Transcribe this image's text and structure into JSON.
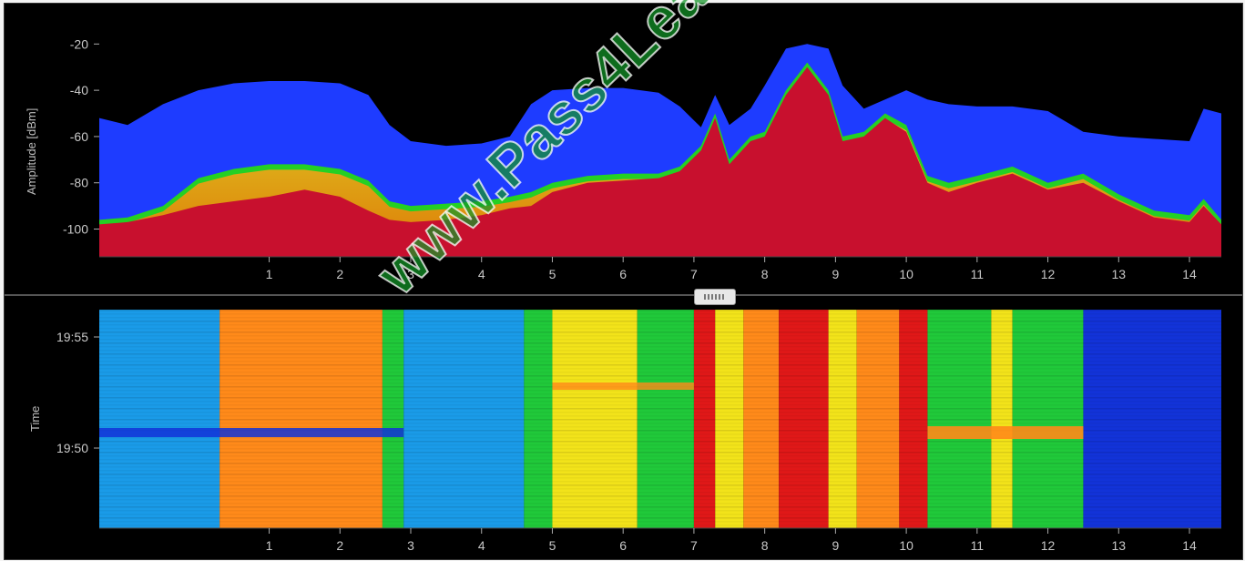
{
  "chart_data": [
    {
      "type": "area",
      "ylabel": "Amplitude [dBm]",
      "xlabel": "",
      "ylim": [
        -112,
        -12
      ],
      "xlim": [
        -1.4,
        14.45
      ],
      "x_ticks": [
        "1",
        "2",
        "3",
        "4",
        "5",
        "6",
        "7",
        "8",
        "9",
        "10",
        "11",
        "12",
        "13",
        "14"
      ],
      "y_ticks": [
        "-20",
        "-40",
        "-60",
        "-80",
        "-100"
      ],
      "grid": false,
      "series": [
        {
          "color": "#1e3cff",
          "x": [
            -1.4,
            -1.0,
            -0.5,
            0.0,
            0.5,
            1.0,
            1.5,
            2.0,
            2.4,
            2.7,
            3.0,
            3.5,
            4.0,
            4.4,
            4.7,
            5.0,
            5.5,
            6.0,
            6.5,
            6.8,
            7.1,
            7.3,
            7.5,
            7.8,
            8.0,
            8.3,
            8.6,
            8.9,
            9.1,
            9.4,
            9.7,
            10.0,
            10.3,
            10.6,
            11.0,
            11.5,
            12.0,
            12.5,
            13.0,
            13.5,
            14.0,
            14.2,
            14.45
          ],
          "values": [
            -52,
            -55,
            -46,
            -40,
            -37,
            -36,
            -36,
            -37,
            -42,
            -55,
            -62,
            -64,
            -63,
            -60,
            -46,
            -40,
            -39,
            -39,
            -41,
            -47,
            -56,
            -42,
            -55,
            -48,
            -38,
            -22,
            -20,
            -22,
            -38,
            -48,
            -44,
            -40,
            -44,
            -46,
            -47,
            -47,
            -49,
            -58,
            -60,
            -61,
            -62,
            -48,
            -50
          ]
        },
        {
          "color": "#24d024",
          "x": [
            -1.4,
            -1.0,
            -0.5,
            0.0,
            0.5,
            1.0,
            1.5,
            2.0,
            2.4,
            2.7,
            3.0,
            3.5,
            4.0,
            4.4,
            4.7,
            5.0,
            5.5,
            6.0,
            6.5,
            6.8,
            7.1,
            7.3,
            7.5,
            7.8,
            8.0,
            8.3,
            8.6,
            8.9,
            9.1,
            9.4,
            9.7,
            10.0,
            10.3,
            10.6,
            11.0,
            11.5,
            12.0,
            12.5,
            13.0,
            13.5,
            14.0,
            14.2,
            14.45
          ],
          "values": [
            -96,
            -95,
            -90,
            -78,
            -74,
            -72,
            -72,
            -74,
            -79,
            -88,
            -90,
            -89,
            -88,
            -86,
            -84,
            -80,
            -77,
            -76,
            -76,
            -73,
            -64,
            -50,
            -70,
            -60,
            -58,
            -40,
            -28,
            -40,
            -60,
            -58,
            -50,
            -55,
            -77,
            -80,
            -77,
            -73,
            -80,
            -76,
            -85,
            -92,
            -94,
            -87,
            -96
          ]
        },
        {
          "color": "#c8102e",
          "x": [
            -1.4,
            -1.0,
            -0.5,
            0.0,
            0.5,
            1.0,
            1.5,
            2.0,
            2.4,
            2.7,
            3.0,
            3.5,
            4.0,
            4.4,
            4.7,
            5.0,
            5.5,
            6.0,
            6.5,
            6.8,
            7.1,
            7.3,
            7.5,
            7.8,
            8.0,
            8.3,
            8.6,
            8.9,
            9.1,
            9.4,
            9.7,
            10.0,
            10.3,
            10.6,
            11.0,
            11.5,
            12.0,
            12.5,
            13.0,
            13.5,
            14.0,
            14.2,
            14.45
          ],
          "values": [
            -98,
            -97,
            -94,
            -90,
            -88,
            -86,
            -83,
            -86,
            -92,
            -96,
            -97,
            -96,
            -94,
            -91,
            -90,
            -84,
            -80,
            -79,
            -78,
            -75,
            -66,
            -52,
            -72,
            -62,
            -60,
            -42,
            -30,
            -42,
            -62,
            -60,
            -52,
            -58,
            -80,
            -84,
            -80,
            -76,
            -83,
            -80,
            -88,
            -95,
            -97,
            -90,
            -98
          ]
        }
      ]
    },
    {
      "type": "heatmap",
      "ylabel": "Time",
      "xlabel": "",
      "x_ticks": [
        "1",
        "2",
        "3",
        "4",
        "5",
        "6",
        "7",
        "8",
        "9",
        "10",
        "11",
        "12",
        "13",
        "14"
      ],
      "y_ticks": [
        "19:55",
        "19:50"
      ],
      "grid": false,
      "colorscale": [
        "#1233d8",
        "#1a9be8",
        "#20c93a",
        "#f2e31a",
        "#ff8a1a",
        "#e01818"
      ],
      "column_bands": [
        {
          "x_start": -1.4,
          "x_end": 0.3,
          "level": 1
        },
        {
          "x_start": 0.3,
          "x_end": 2.6,
          "level": 4
        },
        {
          "x_start": 2.6,
          "x_end": 2.9,
          "level": 2
        },
        {
          "x_start": 2.9,
          "x_end": 4.6,
          "level": 1
        },
        {
          "x_start": 4.6,
          "x_end": 5.0,
          "level": 2
        },
        {
          "x_start": 5.0,
          "x_end": 6.2,
          "level": 3
        },
        {
          "x_start": 6.2,
          "x_end": 7.0,
          "level": 2
        },
        {
          "x_start": 7.0,
          "x_end": 7.3,
          "level": 5
        },
        {
          "x_start": 7.3,
          "x_end": 7.7,
          "level": 3
        },
        {
          "x_start": 7.7,
          "x_end": 8.2,
          "level": 4
        },
        {
          "x_start": 8.2,
          "x_end": 8.9,
          "level": 5
        },
        {
          "x_start": 8.9,
          "x_end": 9.3,
          "level": 3
        },
        {
          "x_start": 9.3,
          "x_end": 9.9,
          "level": 4
        },
        {
          "x_start": 9.9,
          "x_end": 10.3,
          "level": 5
        },
        {
          "x_start": 10.3,
          "x_end": 11.2,
          "level": 2
        },
        {
          "x_start": 11.2,
          "x_end": 11.5,
          "level": 3
        },
        {
          "x_start": 11.5,
          "x_end": 12.5,
          "level": 2
        },
        {
          "x_start": 12.5,
          "x_end": 14.45,
          "level": 0
        }
      ]
    }
  ],
  "watermark": "www.Pass4Lead.com",
  "colors": {
    "background": "#000000",
    "axis_text": "#c8c8c8",
    "separator": "#555555"
  }
}
